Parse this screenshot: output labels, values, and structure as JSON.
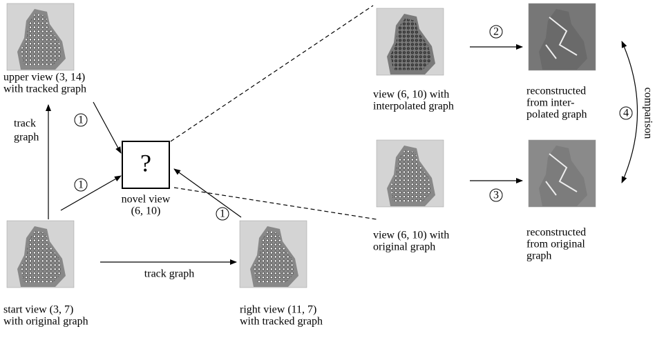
{
  "images": [
    {
      "caption": [
        "upper view (3, 14)",
        "with tracked graph"
      ]
    },
    {
      "caption": [
        "start view (3, 7)",
        "with original graph"
      ]
    },
    {
      "caption": [
        "right view (11, 7)",
        "with tracked graph"
      ]
    },
    {
      "caption": [
        "view (6, 10) with",
        "interpolated graph"
      ]
    },
    {
      "caption": [
        "view (6, 10) with",
        "original graph"
      ]
    },
    {
      "caption": [
        "reconstructed",
        "from inter-",
        "polated graph"
      ]
    },
    {
      "caption": [
        "reconstructed",
        "from original",
        "graph"
      ]
    }
  ],
  "novel_view": {
    "symbol": "?",
    "caption": [
      "novel view",
      "(6, 10)"
    ]
  },
  "edge_labels": {
    "track_vertical": [
      "track",
      "graph"
    ],
    "track_horizontal": "track graph",
    "comparison": "comparison"
  },
  "steps": [
    "1",
    "1",
    "1",
    "2",
    "3",
    "4"
  ]
}
